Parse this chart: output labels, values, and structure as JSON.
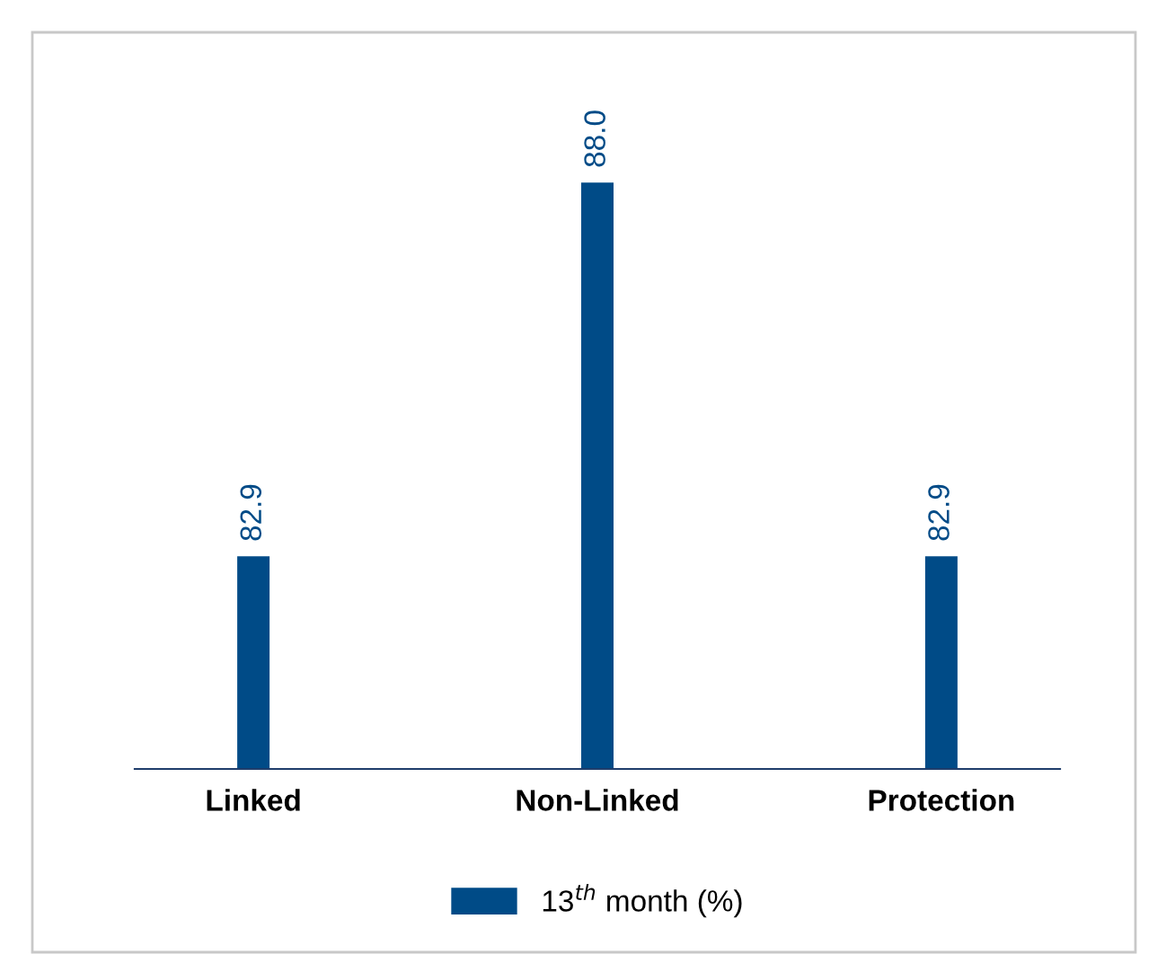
{
  "chart_data": {
    "type": "bar",
    "categories": [
      "Linked",
      "Non-Linked",
      "Protection"
    ],
    "series": [
      {
        "name": "13$^{th}$ month (%)",
        "color": "#004b87",
        "values": [
          82.9,
          88.0,
          82.9
        ],
        "value_labels": [
          "82.9",
          "88.0",
          "82.9"
        ]
      }
    ],
    "ylim": [
      80,
      90
    ],
    "legend": "bottom",
    "grid": false,
    "tick_labels": "x"
  }
}
